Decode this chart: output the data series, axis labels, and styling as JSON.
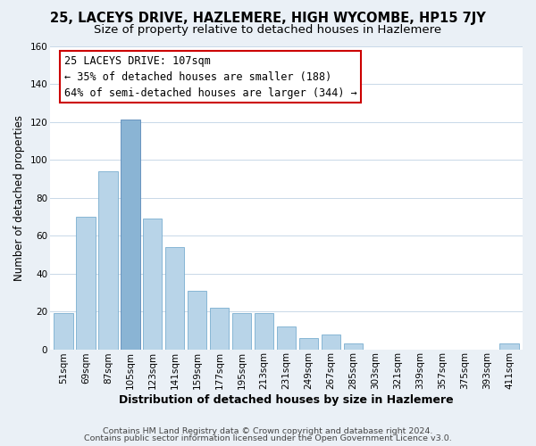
{
  "title": "25, LACEYS DRIVE, HAZLEMERE, HIGH WYCOMBE, HP15 7JY",
  "subtitle": "Size of property relative to detached houses in Hazlemere",
  "xlabel": "Distribution of detached houses by size in Hazlemere",
  "ylabel": "Number of detached properties",
  "footer_line1": "Contains HM Land Registry data © Crown copyright and database right 2024.",
  "footer_line2": "Contains public sector information licensed under the Open Government Licence v3.0.",
  "annotation_line1": "25 LACEYS DRIVE: 107sqm",
  "annotation_line2": "← 35% of detached houses are smaller (188)",
  "annotation_line3": "64% of semi-detached houses are larger (344) →",
  "bar_labels": [
    "51sqm",
    "69sqm",
    "87sqm",
    "105sqm",
    "123sqm",
    "141sqm",
    "159sqm",
    "177sqm",
    "195sqm",
    "213sqm",
    "231sqm",
    "249sqm",
    "267sqm",
    "285sqm",
    "303sqm",
    "321sqm",
    "339sqm",
    "357sqm",
    "375sqm",
    "393sqm",
    "411sqm"
  ],
  "bar_values": [
    19,
    70,
    94,
    121,
    69,
    54,
    31,
    22,
    19,
    19,
    12,
    6,
    8,
    3,
    0,
    0,
    0,
    0,
    0,
    0,
    3
  ],
  "highlight_index": 3,
  "bar_color_normal": "#b8d4e8",
  "bar_color_highlight": "#8ab4d4",
  "bar_edge_color": "#7aaed0",
  "bar_edge_color_highlight": "#5a8ab8",
  "ylim": [
    0,
    160
  ],
  "yticks": [
    0,
    20,
    40,
    60,
    80,
    100,
    120,
    140,
    160
  ],
  "bg_color": "#eaf0f6",
  "plot_bg_color": "#ffffff",
  "grid_color": "#c8d8e8",
  "annotation_box_color": "#ffffff",
  "annotation_box_edge": "#cc0000",
  "title_fontsize": 10.5,
  "subtitle_fontsize": 9.5,
  "xlabel_fontsize": 9,
  "ylabel_fontsize": 8.5,
  "tick_fontsize": 7.5,
  "annotation_fontsize": 8.5,
  "footer_fontsize": 6.8
}
